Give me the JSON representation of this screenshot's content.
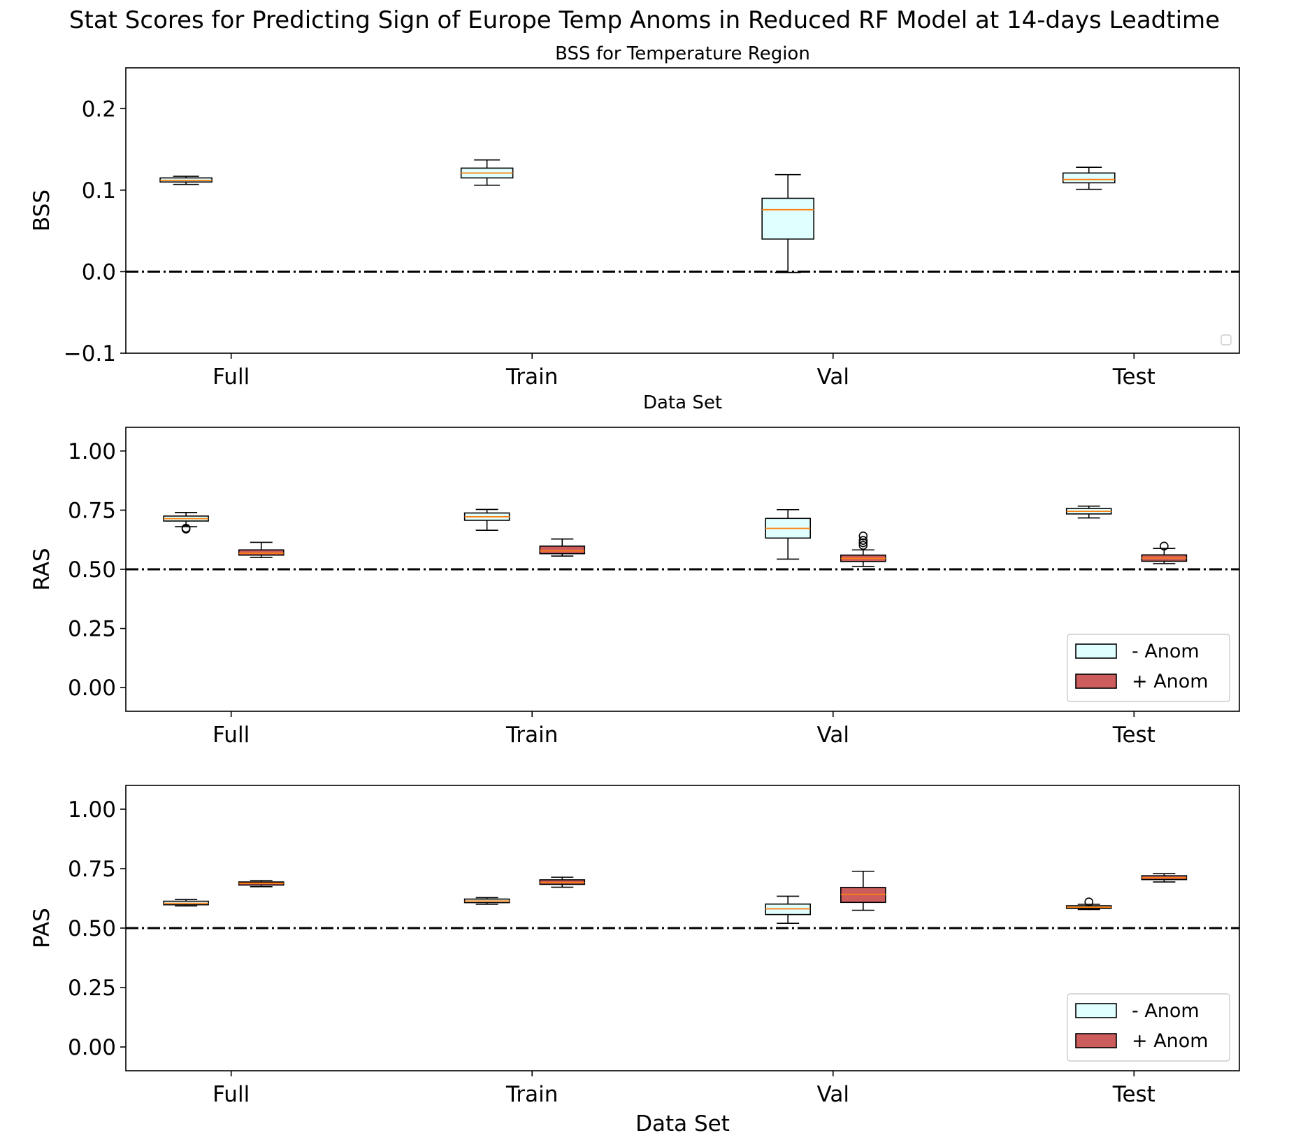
{
  "figure": {
    "title": "Stat Scores for Predicting Sign of Europe Temp Anoms in Reduced RF Model at 14-days Leadtime"
  },
  "colors": {
    "neg_anom": "#e0ffff",
    "pos_anom": "#cd5c5c",
    "median": "#ff7f0e",
    "reference_line": "#000000"
  },
  "chart_data": [
    {
      "id": "bss",
      "type": "box",
      "title": "BSS for Temperature Region",
      "xlabel": "Data Set",
      "ylabel": "BSS",
      "ylim": [
        -0.1,
        0.25
      ],
      "yticks": [
        -0.1,
        0.0,
        0.1,
        0.2
      ],
      "ytick_labels": [
        "−0.1",
        "0.0",
        "0.1",
        "0.2"
      ],
      "xlim": [
        0.8,
        4.5
      ],
      "xticks": [
        1.15,
        2.15,
        3.15,
        4.15
      ],
      "categories": [
        "Full",
        "Train",
        "Val",
        "Test"
      ],
      "reference_line": 0.0,
      "legend": "empty, lower right",
      "series": [
        {
          "fill_key": "neg_anom",
          "boxes": [
            {
              "pos": 1.0,
              "whislo": 0.107,
              "q1": 0.11,
              "med": 0.112,
              "q3": 0.115,
              "whishi": 0.117,
              "fliers": []
            },
            {
              "pos": 2.0,
              "whislo": 0.106,
              "q1": 0.115,
              "med": 0.121,
              "q3": 0.127,
              "whishi": 0.137,
              "fliers": []
            },
            {
              "pos": 3.0,
              "whislo": -0.001,
              "q1": 0.04,
              "med": 0.076,
              "q3": 0.09,
              "whishi": 0.119,
              "fliers": []
            },
            {
              "pos": 4.0,
              "whislo": 0.101,
              "q1": 0.109,
              "med": 0.113,
              "q3": 0.121,
              "whishi": 0.128,
              "fliers": []
            }
          ]
        }
      ]
    },
    {
      "id": "ras",
      "type": "box",
      "title": "",
      "xlabel": "",
      "ylabel": "RAS",
      "ylim": [
        -0.1,
        1.1
      ],
      "yticks": [
        0.0,
        0.25,
        0.5,
        0.75,
        1.0
      ],
      "ytick_labels": [
        "0.00",
        "0.25",
        "0.50",
        "0.75",
        "1.00"
      ],
      "xlim": [
        0.65,
        4.35
      ],
      "xticks": [
        1.0,
        2.0,
        3.0,
        4.0
      ],
      "categories": [
        "Full",
        "Train",
        "Val",
        "Test"
      ],
      "reference_line": 0.5,
      "legend_position": "lower right",
      "series": [
        {
          "name": "- Anom",
          "fill_key": "neg_anom",
          "boxes": [
            {
              "pos": 0.85,
              "whislo": 0.68,
              "q1": 0.704,
              "med": 0.714,
              "q3": 0.725,
              "whishi": 0.74,
              "fliers": [
                0.674,
                0.67
              ]
            },
            {
              "pos": 1.85,
              "whislo": 0.665,
              "q1": 0.707,
              "med": 0.722,
              "q3": 0.738,
              "whishi": 0.753,
              "fliers": []
            },
            {
              "pos": 2.85,
              "whislo": 0.543,
              "q1": 0.632,
              "med": 0.673,
              "q3": 0.715,
              "whishi": 0.752,
              "fliers": []
            },
            {
              "pos": 3.85,
              "whislo": 0.717,
              "q1": 0.734,
              "med": 0.745,
              "q3": 0.757,
              "whishi": 0.767,
              "fliers": []
            }
          ]
        },
        {
          "name": "+ Anom",
          "fill_key": "pos_anom",
          "boxes": [
            {
              "pos": 1.1,
              "whislo": 0.55,
              "q1": 0.56,
              "med": 0.568,
              "q3": 0.582,
              "whishi": 0.614,
              "fliers": []
            },
            {
              "pos": 2.1,
              "whislo": 0.556,
              "q1": 0.566,
              "med": 0.578,
              "q3": 0.598,
              "whishi": 0.628,
              "fliers": []
            },
            {
              "pos": 3.1,
              "whislo": 0.512,
              "q1": 0.533,
              "med": 0.546,
              "q3": 0.56,
              "whishi": 0.582,
              "fliers": [
                0.641,
                0.622,
                0.612,
                0.601
              ]
            },
            {
              "pos": 4.1,
              "whislo": 0.524,
              "q1": 0.534,
              "med": 0.548,
              "q3": 0.561,
              "whishi": 0.588,
              "fliers": [
                0.598
              ]
            }
          ]
        }
      ]
    },
    {
      "id": "pas",
      "type": "box",
      "title": "",
      "xlabel": "Data Set",
      "ylabel": "PAS",
      "ylim": [
        -0.1,
        1.1
      ],
      "yticks": [
        0.0,
        0.25,
        0.5,
        0.75,
        1.0
      ],
      "ytick_labels": [
        "0.00",
        "0.25",
        "0.50",
        "0.75",
        "1.00"
      ],
      "xlim": [
        0.65,
        4.35
      ],
      "xticks": [
        1.0,
        2.0,
        3.0,
        4.0
      ],
      "categories": [
        "Full",
        "Train",
        "Val",
        "Test"
      ],
      "reference_line": 0.5,
      "legend_position": "lower right",
      "series": [
        {
          "name": "- Anom",
          "fill_key": "neg_anom",
          "boxes": [
            {
              "pos": 0.85,
              "whislo": 0.593,
              "q1": 0.598,
              "med": 0.604,
              "q3": 0.613,
              "whishi": 0.62,
              "fliers": []
            },
            {
              "pos": 1.85,
              "whislo": 0.6,
              "q1": 0.607,
              "med": 0.614,
              "q3": 0.622,
              "whishi": 0.628,
              "fliers": []
            },
            {
              "pos": 2.85,
              "whislo": 0.52,
              "q1": 0.557,
              "med": 0.581,
              "q3": 0.601,
              "whishi": 0.634,
              "fliers": []
            },
            {
              "pos": 3.85,
              "whislo": 0.578,
              "q1": 0.583,
              "med": 0.588,
              "q3": 0.594,
              "whishi": 0.6,
              "fliers": [
                0.61
              ]
            }
          ]
        },
        {
          "name": "+ Anom",
          "fill_key": "pos_anom",
          "boxes": [
            {
              "pos": 1.1,
              "whislo": 0.674,
              "q1": 0.681,
              "med": 0.688,
              "q3": 0.694,
              "whishi": 0.7,
              "fliers": []
            },
            {
              "pos": 2.1,
              "whislo": 0.672,
              "q1": 0.684,
              "med": 0.692,
              "q3": 0.703,
              "whishi": 0.714,
              "fliers": []
            },
            {
              "pos": 3.1,
              "whislo": 0.575,
              "q1": 0.608,
              "med": 0.642,
              "q3": 0.671,
              "whishi": 0.739,
              "fliers": []
            },
            {
              "pos": 4.1,
              "whislo": 0.694,
              "q1": 0.704,
              "med": 0.712,
              "q3": 0.72,
              "whishi": 0.729,
              "fliers": []
            }
          ]
        }
      ]
    }
  ]
}
